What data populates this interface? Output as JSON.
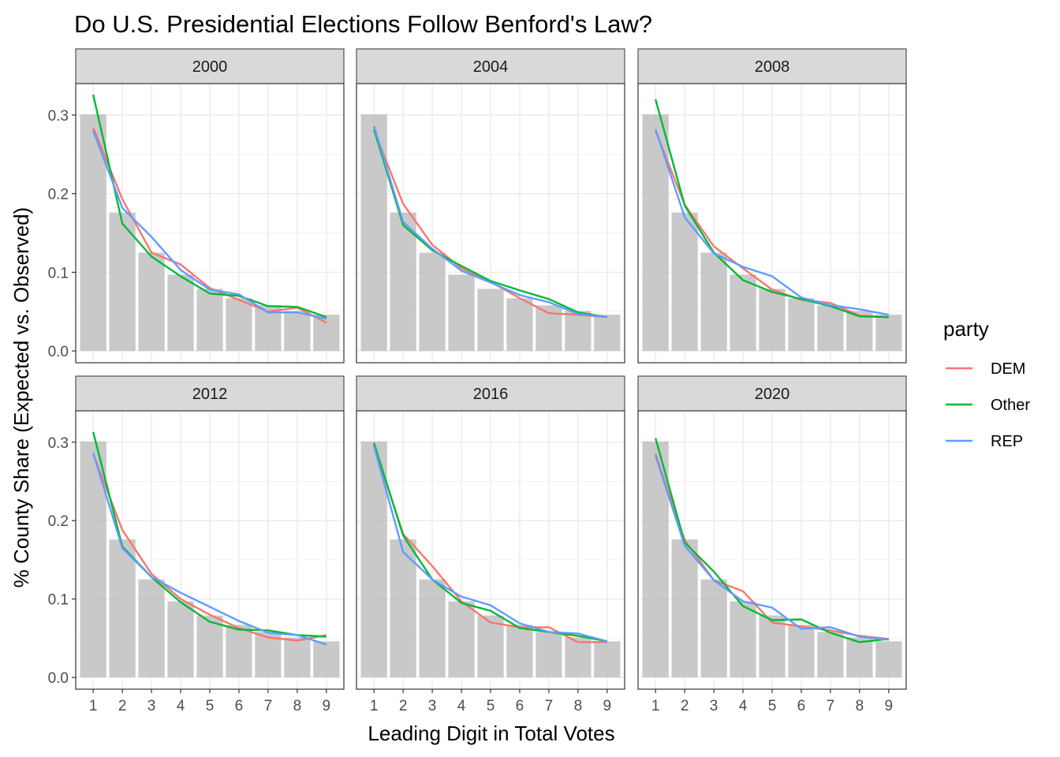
{
  "chart_data": {
    "type": "line",
    "title": "Do U.S. Presidential Elections Follow Benford's Law?",
    "xlabel": "Leading Digit in Total Votes",
    "ylabel": "% County Share (Expected vs. Observed)",
    "x": [
      1,
      2,
      3,
      4,
      5,
      6,
      7,
      8,
      9
    ],
    "ylim": [
      -0.015,
      0.34
    ],
    "yticks": [
      0.0,
      0.1,
      0.2,
      0.3
    ],
    "ytick_labels": [
      "0.0",
      "0.1",
      "0.2",
      "0.3"
    ],
    "grid": true,
    "legend": {
      "title": "party",
      "placement": "right",
      "entries": [
        {
          "name": "DEM",
          "color": "#F8766D"
        },
        {
          "name": "Other",
          "color": "#00BA38"
        },
        {
          "name": "REP",
          "color": "#619CFF"
        }
      ]
    },
    "expected_bars": {
      "color": "#bfbfbf",
      "values": [
        0.301,
        0.176,
        0.125,
        0.097,
        0.079,
        0.067,
        0.058,
        0.051,
        0.046
      ]
    },
    "panels": [
      {
        "label": "2000",
        "series": [
          {
            "name": "DEM",
            "values": [
              0.284,
              0.193,
              0.125,
              0.11,
              0.08,
              0.065,
              0.05,
              0.055,
              0.036
            ]
          },
          {
            "name": "Other",
            "values": [
              0.326,
              0.162,
              0.12,
              0.095,
              0.073,
              0.07,
              0.057,
              0.056,
              0.043
            ]
          },
          {
            "name": "REP",
            "values": [
              0.28,
              0.182,
              0.145,
              0.103,
              0.078,
              0.072,
              0.049,
              0.049,
              0.041
            ]
          }
        ]
      },
      {
        "label": "2004",
        "series": [
          {
            "name": "DEM",
            "values": [
              0.281,
              0.187,
              0.135,
              0.105,
              0.088,
              0.067,
              0.048,
              0.046,
              0.043
            ]
          },
          {
            "name": "Other",
            "values": [
              0.282,
              0.16,
              0.128,
              0.108,
              0.089,
              0.077,
              0.066,
              0.049,
              0.043
            ]
          },
          {
            "name": "REP",
            "values": [
              0.286,
              0.164,
              0.13,
              0.102,
              0.087,
              0.071,
              0.062,
              0.047,
              0.043
            ]
          }
        ]
      },
      {
        "label": "2008",
        "series": [
          {
            "name": "DEM",
            "values": [
              0.28,
              0.186,
              0.133,
              0.105,
              0.078,
              0.065,
              0.061,
              0.045,
              0.043
            ]
          },
          {
            "name": "Other",
            "values": [
              0.32,
              0.185,
              0.125,
              0.09,
              0.075,
              0.066,
              0.057,
              0.044,
              0.043
            ]
          },
          {
            "name": "REP",
            "values": [
              0.282,
              0.17,
              0.124,
              0.107,
              0.095,
              0.068,
              0.058,
              0.053,
              0.046
            ]
          }
        ]
      },
      {
        "label": "2012",
        "series": [
          {
            "name": "DEM",
            "values": [
              0.285,
              0.188,
              0.132,
              0.1,
              0.08,
              0.063,
              0.051,
              0.047,
              0.054
            ]
          },
          {
            "name": "Other",
            "values": [
              0.313,
              0.167,
              0.128,
              0.096,
              0.071,
              0.061,
              0.06,
              0.054,
              0.052
            ]
          },
          {
            "name": "REP",
            "values": [
              0.286,
              0.165,
              0.128,
              0.108,
              0.09,
              0.072,
              0.057,
              0.054,
              0.042
            ]
          }
        ]
      },
      {
        "label": "2016",
        "series": [
          {
            "name": "DEM",
            "values": [
              0.296,
              0.183,
              0.142,
              0.097,
              0.07,
              0.064,
              0.064,
              0.045,
              0.045
            ]
          },
          {
            "name": "Other",
            "values": [
              0.299,
              0.181,
              0.125,
              0.095,
              0.085,
              0.063,
              0.058,
              0.053,
              0.046
            ]
          },
          {
            "name": "REP",
            "values": [
              0.295,
              0.16,
              0.125,
              0.103,
              0.092,
              0.069,
              0.058,
              0.056,
              0.046
            ]
          }
        ]
      },
      {
        "label": "2020",
        "series": [
          {
            "name": "DEM",
            "values": [
              0.285,
              0.175,
              0.124,
              0.11,
              0.07,
              0.065,
              0.06,
              0.053,
              0.049
            ]
          },
          {
            "name": "Other",
            "values": [
              0.305,
              0.172,
              0.135,
              0.091,
              0.073,
              0.074,
              0.057,
              0.045,
              0.049
            ]
          },
          {
            "name": "REP",
            "values": [
              0.283,
              0.168,
              0.124,
              0.097,
              0.089,
              0.062,
              0.064,
              0.052,
              0.048
            ]
          }
        ]
      }
    ]
  }
}
